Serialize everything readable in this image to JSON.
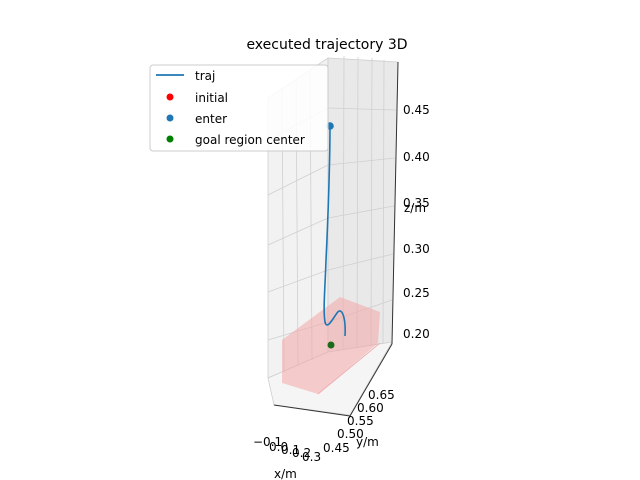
{
  "chart_data": {
    "type": "line",
    "title": "executed trajectory 3D",
    "xlabel": "x/m",
    "ylabel": "y/m",
    "zlabel": "z/m",
    "x_ticks": [
      "−0.1",
      "0.0",
      "0.1",
      "0.2",
      "0.3"
    ],
    "y_ticks": [
      "0.45",
      "0.50",
      "0.55",
      "0.60",
      "0.65"
    ],
    "z_ticks": [
      "0.20",
      "0.25",
      "0.30",
      "0.35",
      "0.40",
      "0.45"
    ],
    "zlim": [
      0.17,
      0.5
    ],
    "grid": true,
    "legend_position": "upper-left",
    "legend": [
      {
        "label": "traj",
        "kind": "line",
        "color": "#1f77b4"
      },
      {
        "label": "initial",
        "kind": "marker",
        "color": "#ff0000"
      },
      {
        "label": "enter",
        "kind": "marker",
        "color": "#1f77b4"
      },
      {
        "label": "goal region center",
        "kind": "marker",
        "color": "#008000"
      }
    ],
    "goal_region_color": "#f4a6a6",
    "series": [
      {
        "name": "traj",
        "color": "#1f77b4",
        "z": [
          0.43,
          0.4,
          0.36,
          0.32,
          0.28,
          0.24,
          0.215,
          0.21,
          0.215,
          0.22,
          0.21,
          0.2
        ]
      }
    ],
    "points": [
      {
        "name": "enter",
        "z": 0.43,
        "color": "#1f77b4"
      },
      {
        "name": "goal region center",
        "z": 0.185,
        "color": "#006400"
      }
    ]
  }
}
